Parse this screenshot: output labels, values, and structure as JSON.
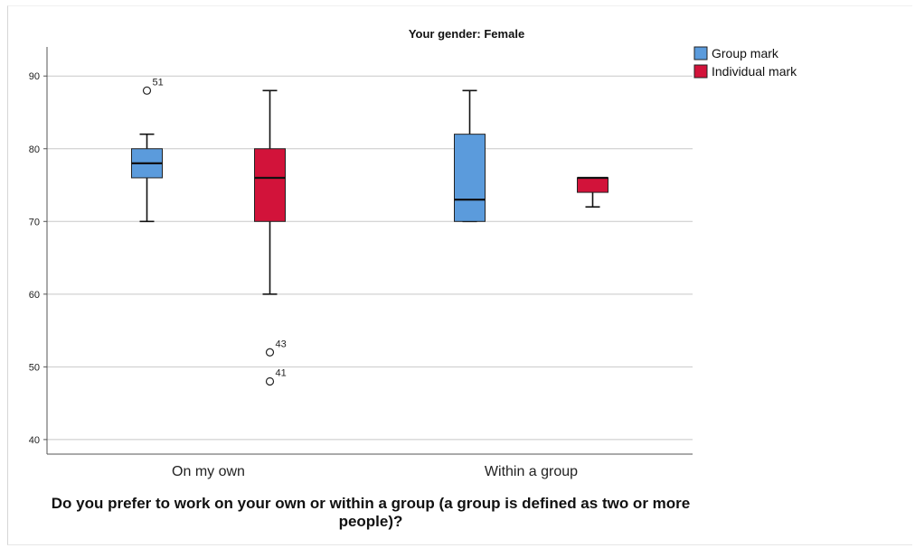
{
  "chart_data": {
    "type": "boxplot",
    "title": "Your gender: Female",
    "xlabel": "Do you prefer to work on your own or within a group (a group is defined as two or more people)?",
    "ylabel": "",
    "ylim": [
      38,
      94
    ],
    "yticks": [
      40,
      50,
      60,
      70,
      80,
      90
    ],
    "grid": true,
    "legend_position": "top-right",
    "categories": [
      "On my own",
      "Within a group"
    ],
    "series": [
      {
        "name": "Group mark",
        "color": "#5b9bdc",
        "boxes": [
          {
            "category": "On my own",
            "min": 70,
            "q1": 76,
            "median": 78,
            "q3": 80,
            "max": 82,
            "outliers": [
              {
                "value": 88,
                "label": "51"
              }
            ]
          },
          {
            "category": "Within a group",
            "min": 70,
            "q1": 70,
            "median": 73,
            "q3": 82,
            "max": 88,
            "outliers": []
          }
        ]
      },
      {
        "name": "Individual mark",
        "color": "#d2133a",
        "boxes": [
          {
            "category": "On my own",
            "min": 60,
            "q1": 70,
            "median": 76,
            "q3": 80,
            "max": 88,
            "outliers": [
              {
                "value": 52,
                "label": "43"
              },
              {
                "value": 48,
                "label": "41"
              }
            ]
          },
          {
            "category": "Within a group",
            "min": 72,
            "q1": 74,
            "median": 76,
            "q3": 76,
            "max": 76,
            "outliers": []
          }
        ]
      }
    ]
  }
}
